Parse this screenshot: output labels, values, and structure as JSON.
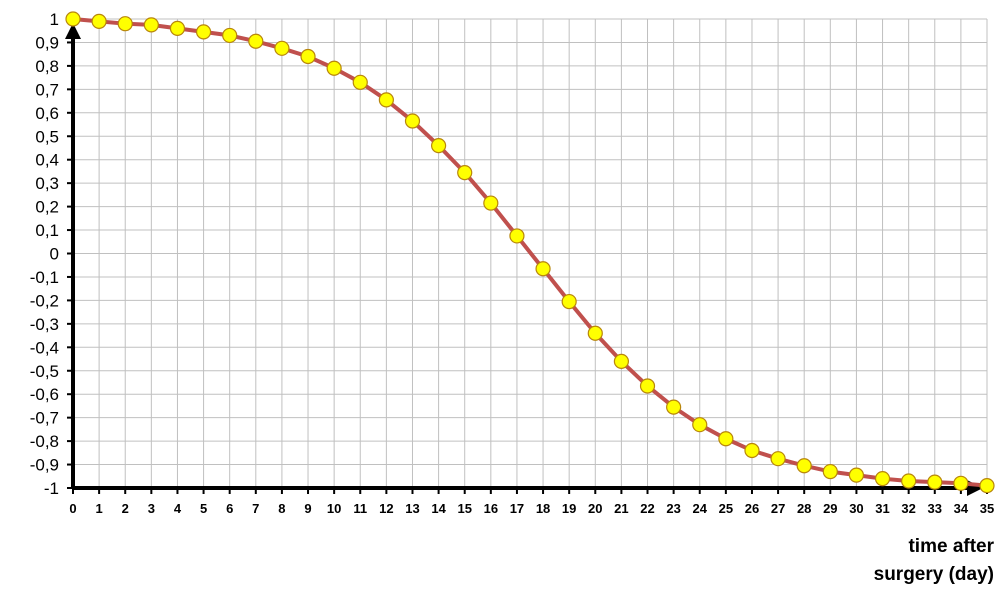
{
  "chart_data": {
    "type": "line",
    "x": [
      0,
      1,
      2,
      3,
      4,
      5,
      6,
      7,
      8,
      9,
      10,
      11,
      12,
      13,
      14,
      15,
      16,
      17,
      18,
      19,
      20,
      21,
      22,
      23,
      24,
      25,
      26,
      27,
      28,
      29,
      30,
      31,
      32,
      33,
      34,
      35
    ],
    "series": [
      {
        "values": [
          1,
          0.99,
          0.98,
          0.975,
          0.96,
          0.945,
          0.93,
          0.905,
          0.875,
          0.84,
          0.79,
          0.73,
          0.655,
          0.565,
          0.46,
          0.345,
          0.215,
          0.075,
          -0.065,
          -0.205,
          -0.34,
          -0.46,
          -0.565,
          -0.655,
          -0.73,
          -0.79,
          -0.84,
          -0.875,
          -0.905,
          -0.93,
          -0.945,
          -0.96,
          -0.97,
          -0.975,
          -0.98,
          -0.99
        ],
        "line_color": "#c0504d",
        "marker_color": "#ffff00",
        "marker_edge_color": "#b8860b"
      }
    ],
    "xlim": [
      0,
      35
    ],
    "ylim": [
      -1,
      1
    ],
    "x_ticks": [
      "0",
      "1",
      "2",
      "3",
      "4",
      "5",
      "6",
      "7",
      "8",
      "9",
      "10",
      "11",
      "12",
      "13",
      "14",
      "15",
      "16",
      "17",
      "18",
      "19",
      "20",
      "21",
      "22",
      "23",
      "24",
      "25",
      "26",
      "27",
      "28",
      "29",
      "30",
      "31",
      "32",
      "33",
      "34",
      "35"
    ],
    "y_ticks": [
      "1",
      "0,9",
      "0,8",
      "0,7",
      "0,6",
      "0,5",
      "0,4",
      "0,3",
      "0,2",
      "0,1",
      "0",
      "-0,1",
      "-0,2",
      "-0,3",
      "-0,4",
      "-0,5",
      "-0,6",
      "-0,7",
      "-0,8",
      "-0,9",
      "-1"
    ],
    "xlabel": "time after surgery (day)",
    "xlabel_lines": [
      "time after",
      "surgery (day)"
    ],
    "grid": true,
    "grid_color": "#c0c0c0",
    "axis_color": "#000000"
  }
}
